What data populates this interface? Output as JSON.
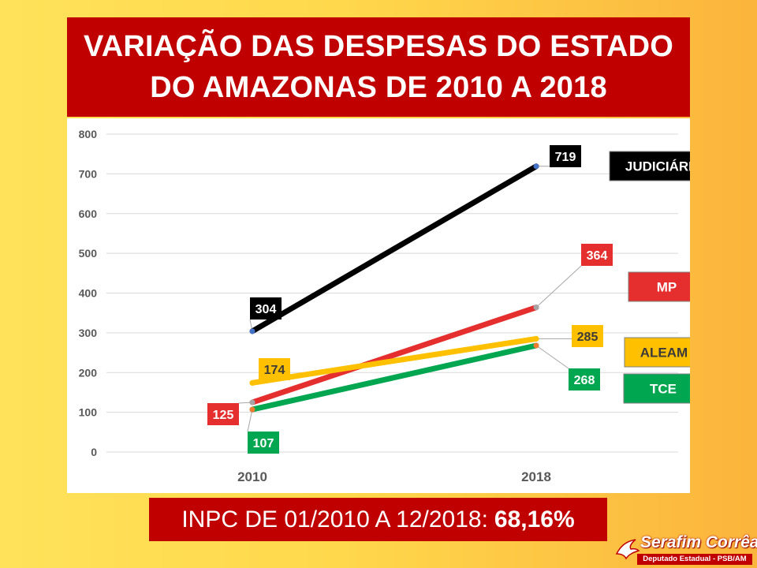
{
  "title": {
    "line1": "VARIAÇÃO DAS DESPESAS DO ESTADO",
    "line2": "DO AMAZONAS DE 2010 A 2018"
  },
  "footer": {
    "text": "INPC DE 01/2010 A 12/2018:",
    "value": "68,16%"
  },
  "logo": {
    "name": "Serafim Corrêa",
    "subtitle": "Deputado Estadual - PSB/AM"
  },
  "colors": {
    "background": "#ffd84c",
    "title_bg": "#c00000",
    "judiciario": "#000000",
    "mp": "#e52e2e",
    "aleam": "#ffc000",
    "tce": "#00a650"
  },
  "chart_data": {
    "type": "line",
    "categories": [
      "2010",
      "2018"
    ],
    "ylim": [
      0,
      800
    ],
    "yticks": [
      "0",
      "100",
      "200",
      "300",
      "400",
      "500",
      "600",
      "700",
      "800"
    ],
    "grid": true,
    "legend_position": "right",
    "series": [
      {
        "name": "JUDICIÁRIO",
        "values": [
          304,
          719
        ],
        "labels": [
          "304",
          "719"
        ],
        "color": "#000000",
        "label_text_color": "#ffffff"
      },
      {
        "name": "MP",
        "values": [
          125,
          364
        ],
        "labels": [
          "125",
          "364"
        ],
        "color": "#e52e2e",
        "label_text_color": "#ffffff"
      },
      {
        "name": "ALEAM",
        "values": [
          174,
          285
        ],
        "labels": [
          "174",
          "285"
        ],
        "color": "#ffc000",
        "label_text_color": "#3a3a3a"
      },
      {
        "name": "TCE",
        "values": [
          107,
          268
        ],
        "labels": [
          "107",
          "268"
        ],
        "color": "#00a650",
        "label_text_color": "#ffffff"
      }
    ]
  }
}
